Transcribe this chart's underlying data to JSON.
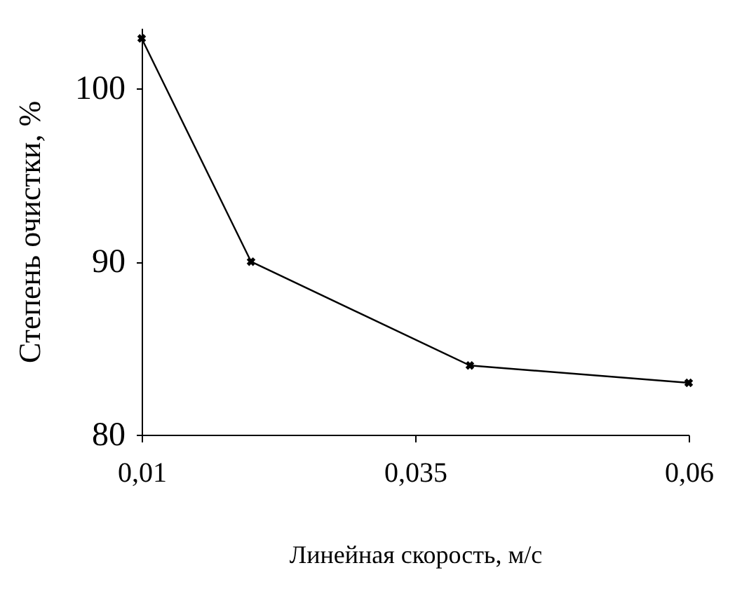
{
  "chart_data": {
    "type": "line",
    "xlabel": "Линейная скорость, м/с",
    "ylabel": "Степень очистки, %",
    "x": [
      0.01,
      0.02,
      0.04,
      0.06
    ],
    "series": [
      {
        "color": "#000000",
        "values": [
          102.9,
          90,
          84,
          83
        ]
      }
    ],
    "xlim": [
      0.01,
      0.06
    ],
    "ylim": [
      80,
      103.5
    ],
    "xticks": [
      {
        "value": 0.01,
        "label": "0,01"
      },
      {
        "value": 0.035,
        "label": "0,035"
      },
      {
        "value": 0.06,
        "label": "0,06"
      }
    ],
    "yticks": [
      80,
      90,
      100
    ],
    "grid": false,
    "marker": "cross",
    "line_style": "solid"
  }
}
